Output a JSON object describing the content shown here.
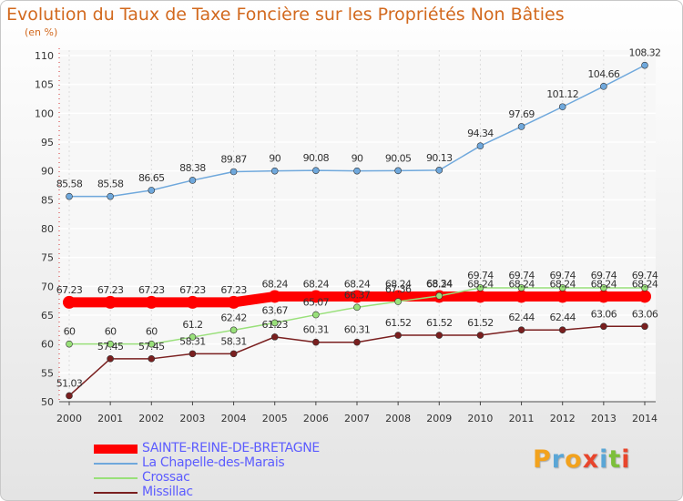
{
  "title": "Evolution du Taux de Taxe Foncière sur les Propriétés Non Bâties",
  "unit": "(en %)",
  "logo": {
    "letters": [
      "P",
      "r",
      "o",
      "x",
      "i",
      "t",
      "i"
    ],
    "colors": [
      "#f2a21d",
      "#5aa6d6",
      "#f2a21d",
      "#e8452c",
      "#5aa6d6",
      "#7cbf3a",
      "#e8452c"
    ]
  },
  "chart_data": {
    "type": "line",
    "x": [
      "2000",
      "2001",
      "2002",
      "2003",
      "2004",
      "2005",
      "2006",
      "2007",
      "2008",
      "2009",
      "2010",
      "2011",
      "2012",
      "2013",
      "2014"
    ],
    "ylim": [
      50,
      110
    ],
    "yticks": [
      "50",
      "55",
      "60",
      "65",
      "70",
      "75",
      "80",
      "85",
      "90",
      "95",
      "100",
      "105",
      "110"
    ],
    "series": [
      {
        "name": "SAINTE-REINE-DE-BRETAGNE",
        "color": "#ff0000",
        "values": [
          67.23,
          67.23,
          67.23,
          67.23,
          67.23,
          68.24,
          68.24,
          68.24,
          68.24,
          68.24,
          68.24,
          68.24,
          68.24,
          68.24,
          68.24
        ],
        "labels": [
          "67.23",
          "67.23",
          "67.23",
          "67.23",
          "67.23",
          "68.24",
          "68.24",
          "68.24",
          "68.24",
          "68.24",
          "68.24",
          "68.24",
          "68.24",
          "68.24",
          "68.24"
        ]
      },
      {
        "name": "La Chapelle-des-Marais",
        "color": "#6fa8dc",
        "values": [
          85.58,
          85.58,
          86.65,
          88.38,
          89.87,
          90,
          90.08,
          90,
          90.05,
          90.13,
          94.34,
          97.69,
          101.12,
          104.66,
          108.32
        ],
        "labels": [
          "85.58",
          "85.58",
          "86.65",
          "88.38",
          "89.87",
          "90",
          "90.08",
          "90",
          "90.05",
          "90.13",
          "94.34",
          "97.69",
          "101.12",
          "104.66",
          "108.32"
        ]
      },
      {
        "name": "Crossac",
        "color": "#99e07a",
        "values": [
          60,
          60,
          60,
          61.2,
          62.42,
          63.67,
          65.07,
          66.37,
          67.36,
          68.34,
          69.74,
          69.74,
          69.74,
          69.74,
          69.74
        ],
        "labels": [
          "60",
          "60",
          "60",
          "61.2",
          "62.42",
          "63.67",
          "65.07",
          "66.37",
          "67.36",
          "68.34",
          "69.74",
          "69.74",
          "69.74",
          "69.74",
          "69.74"
        ]
      },
      {
        "name": "Missillac",
        "color": "#7a1f1f",
        "values": [
          51.03,
          57.45,
          57.45,
          58.31,
          58.31,
          61.23,
          60.31,
          60.31,
          61.52,
          61.52,
          61.52,
          62.44,
          62.44,
          63.06,
          63.06
        ],
        "labels": [
          "51.03",
          "57.45",
          "57.45",
          "58.31",
          "58.31",
          "61.23",
          "60.31",
          "60.31",
          "61.52",
          "61.52",
          "61.52",
          "62.44",
          "62.44",
          "63.06",
          "63.06"
        ]
      }
    ]
  }
}
